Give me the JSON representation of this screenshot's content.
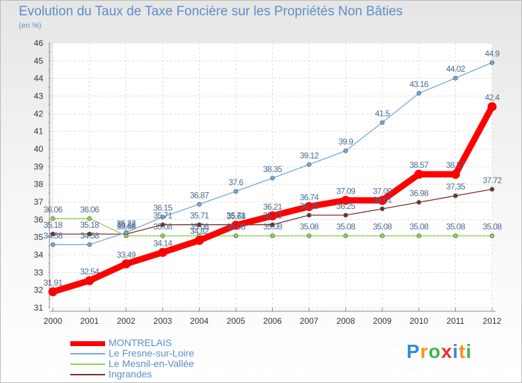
{
  "title": "Evolution du Taux de Taxe Foncière sur les Propriétés Non Bâties",
  "subtitle": "(en %)",
  "logo": {
    "text": "Proxiti",
    "colors": [
      "#2f8fd6",
      "#ff8c1a",
      "#3cb84a",
      "#e8322c",
      "#2f8fd6",
      "#ff8c1a",
      "#3cb84a"
    ]
  },
  "chart_data": {
    "type": "line",
    "x": [
      "2000",
      "2001",
      "2002",
      "2003",
      "2004",
      "2005",
      "2006",
      "2007",
      "2008",
      "2009",
      "2010",
      "2011",
      "2012"
    ],
    "ylim": [
      31,
      46
    ],
    "yticks": [
      31,
      32,
      33,
      34,
      35,
      36,
      37,
      38,
      39,
      40,
      41,
      42,
      43,
      44,
      45,
      46
    ],
    "grid": true,
    "legend_position": "bottom-left",
    "series": [
      {
        "name": "MONTRELAIS",
        "color": "#ff0000",
        "values": [
          31.91,
          32.54,
          33.49,
          34.14,
          34.82,
          35.68,
          36.21,
          36.74,
          37.09,
          37.09,
          38.57,
          38.57,
          42.4
        ],
        "labels": [
          "31.91",
          "32.54",
          "33.49",
          "34.14",
          "34.82",
          "35.68",
          "36.21",
          "36.74",
          "37.09",
          "37.09",
          "38.57",
          "38.57",
          "42.4"
        ]
      },
      {
        "name": "Le Fresne-sur-Loire",
        "color": "#6fa8dc",
        "values": [
          34.58,
          34.58,
          35.27,
          36.15,
          36.87,
          37.6,
          38.35,
          39.12,
          39.9,
          41.5,
          43.16,
          44.02,
          44.9
        ],
        "labels": [
          "34.58",
          "34.58",
          "35.27",
          "36.15",
          "36.87",
          "37.6",
          "38.35",
          "39.12",
          "39.9",
          "41.5",
          "43.16",
          "44.02",
          "44.9"
        ]
      },
      {
        "name": "Le Mesnil-en-Vallée",
        "color": "#8fd14f",
        "values": [
          36.06,
          36.06,
          35.08,
          35.08,
          35.08,
          35.08,
          35.08,
          35.08,
          35.08,
          35.08,
          35.08,
          35.08,
          35.08
        ],
        "labels": [
          "36.06",
          "36.06",
          "35.08",
          "35.08",
          "35.08",
          "35.08",
          "35.08",
          "35.08",
          "35.08",
          "35.08",
          "35.08",
          "35.08",
          "35.08"
        ]
      },
      {
        "name": "Ingrandes",
        "color": "#7b2c2c",
        "values": [
          35.18,
          35.18,
          35.18,
          35.71,
          35.71,
          35.71,
          35.71,
          36.25,
          36.25,
          36.61,
          36.98,
          37.35,
          37.72
        ],
        "labels": [
          "35.18",
          "35.18",
          "35.18",
          "35.71",
          "35.71",
          "35.71",
          "35.71",
          "36.25",
          "36.25",
          "36.61",
          "36.98",
          "37.35",
          "37.72"
        ]
      }
    ]
  }
}
